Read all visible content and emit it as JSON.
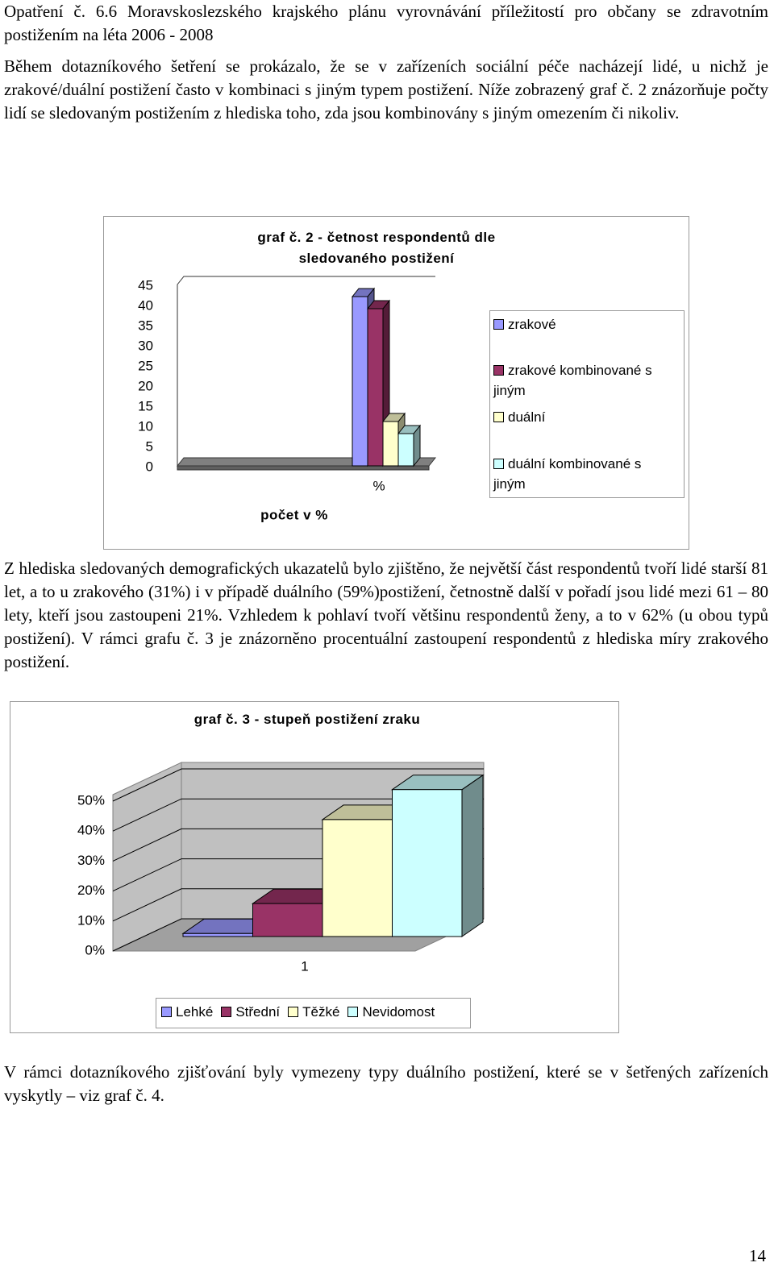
{
  "page": {
    "text_blocks": [
      "Opatření č. 6.6 Moravskoslezského krajského plánu vyrovnávání příležitostí pro občany se zdravotním postižením na léta 2006 - 2008",
      "Během dotazníkového šetření se prokázalo, že se v zařízeních sociální péče nacházejí lidé, u nichž je zrakové/duální postižení často v kombinaci s jiným typem postižení. Níže zobrazený graf č. 2 znázorňuje počty lidí se sledovaným postižením z hlediska toho, zda jsou kombinovány s jiným omezením či nikoliv.",
      "Z hlediska sledovaných demografických ukazatelů bylo zjištěno, že největší část respondentů tvoří lidé starší 81 let, a to u zrakového (31%) i v případě duálního (59%)postižení, četnostně další v pořadí jsou lidé mezi 61 – 80 lety, kteří jsou zastoupeni 21%. Vzhledem k pohlaví tvoří většinu respondentů ženy, a to v 62% (u obou typů postižení). V rámci grafu č. 3 je znázorněno procentuální zastoupení respondentů z hlediska míry zrakového postižení.",
      "V rámci dotazníkového zjišťování byly vymezeny typy duálního postižení, které se v šetřených zařízeních vyskytly – viz graf č. 4."
    ],
    "page_number": "14"
  },
  "chart_data": [
    {
      "type": "bar",
      "title": "graf č. 2 - četnost respondentů dle sledovaného postižení",
      "x_label": "počet v %",
      "categories": [
        "%"
      ],
      "series": [
        {
          "name": "zrakové",
          "color": "#9999ff",
          "values": [
            42
          ]
        },
        {
          "name": "zrakové kombinované s jiným",
          "color": "#993366",
          "values": [
            39
          ]
        },
        {
          "name": "duální",
          "color": "#ffffcc",
          "values": [
            11
          ]
        },
        {
          "name": "duální kombinované s jiným",
          "color": "#ccffff",
          "values": [
            8
          ]
        }
      ],
      "ylim": [
        0,
        45
      ],
      "yticks": [
        0,
        5,
        10,
        15,
        20,
        25,
        30,
        35,
        40,
        45
      ],
      "legend": "right"
    },
    {
      "type": "bar",
      "title": "graf č. 3 - stupeň postižení zraku",
      "categories": [
        "1"
      ],
      "series": [
        {
          "name": "Lehké",
          "color": "#9999ff",
          "values": [
            1
          ]
        },
        {
          "name": "Střední",
          "color": "#993366",
          "values": [
            11
          ]
        },
        {
          "name": "Těžké",
          "color": "#ffffcc",
          "values": [
            39
          ]
        },
        {
          "name": "Nevidomost",
          "color": "#ccffff",
          "values": [
            49
          ]
        }
      ],
      "ylim": [
        0,
        50
      ],
      "yticks": [
        {
          "value": 0,
          "label": "0%"
        },
        {
          "value": 10,
          "label": "10%"
        },
        {
          "value": 20,
          "label": "20%"
        },
        {
          "value": 30,
          "label": "30%"
        },
        {
          "value": 40,
          "label": "40%"
        },
        {
          "value": 50,
          "label": "50%"
        }
      ],
      "grid": true,
      "legend": "bottom"
    }
  ]
}
